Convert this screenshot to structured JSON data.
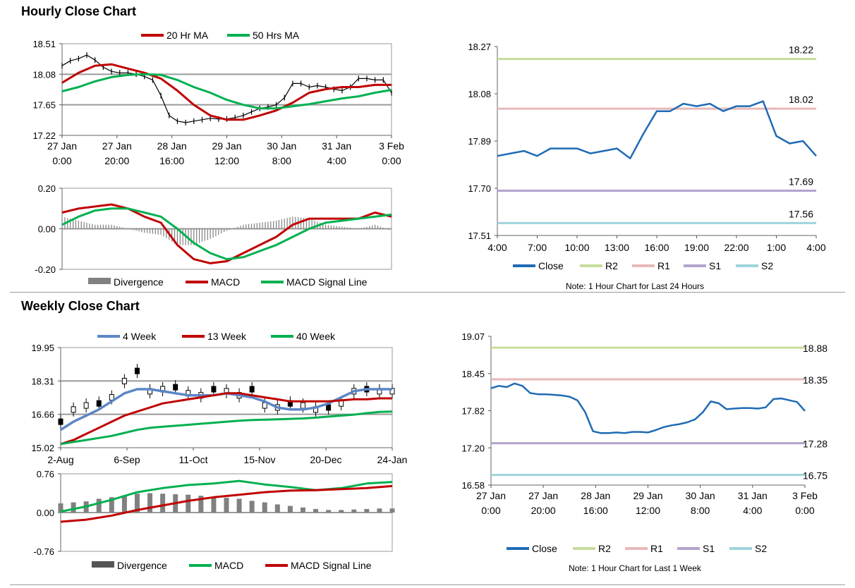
{
  "sections": {
    "hourly_title": "Hourly Close Chart",
    "weekly_title": "Weekly Close Chart"
  },
  "colors": {
    "ma20": "#c00000",
    "ma50": "#00b050",
    "price": "#000000",
    "close": "#1f6bb5",
    "r2": "#c5dd9b",
    "r1": "#e8b8b8",
    "s1": "#b3a3cd",
    "s2": "#9fd3dc",
    "w4": "#5b86c5",
    "w13": "#c00000",
    "w40": "#00b050",
    "divergence": "#808080"
  },
  "chart_data": [
    {
      "id": "hourly_price",
      "type": "line",
      "title": "Hourly Close Chart",
      "ylim": [
        17.22,
        18.51
      ],
      "y_ticks": [
        "18.51",
        "18.08",
        "17.65",
        "17.22"
      ],
      "x_ticks": [
        [
          "27 Jan",
          "0:00"
        ],
        [
          "27 Jan",
          "20:00"
        ],
        [
          "28 Jan",
          "16:00"
        ],
        [
          "29 Jan",
          "12:00"
        ],
        [
          "30 Jan",
          "8:00"
        ],
        [
          "31 Jan",
          "4:00"
        ],
        [
          "3 Feb",
          "0:00"
        ]
      ],
      "x_range": [
        0,
        120
      ],
      "legend": [
        "20 Hr MA",
        "50 Hrs MA"
      ],
      "series": [
        {
          "name": "Price",
          "x": [
            0,
            3,
            6,
            9,
            12,
            15,
            18,
            21,
            24,
            27,
            30,
            33,
            36,
            39,
            42,
            45,
            48,
            51,
            54,
            57,
            60,
            63,
            66,
            69,
            72,
            75,
            78,
            81,
            84,
            87,
            90,
            93,
            96,
            99,
            102,
            105,
            108,
            111,
            114,
            117,
            120
          ],
          "values": [
            18.2,
            18.27,
            18.3,
            18.35,
            18.28,
            18.18,
            18.12,
            18.1,
            18.1,
            18.08,
            18.05,
            18.0,
            17.78,
            17.5,
            17.42,
            17.4,
            17.42,
            17.44,
            17.46,
            17.45,
            17.45,
            17.47,
            17.5,
            17.55,
            17.6,
            17.62,
            17.65,
            17.75,
            17.95,
            17.95,
            17.9,
            17.92,
            17.9,
            17.87,
            17.85,
            17.9,
            18.02,
            18.02,
            18.0,
            18.0,
            17.82
          ]
        },
        {
          "name": "20 Hr MA",
          "x": [
            0,
            6,
            12,
            18,
            24,
            30,
            36,
            42,
            48,
            54,
            60,
            66,
            72,
            78,
            84,
            90,
            96,
            102,
            108,
            114,
            120
          ],
          "values": [
            17.96,
            18.1,
            18.2,
            18.22,
            18.16,
            18.1,
            18.02,
            17.85,
            17.65,
            17.5,
            17.44,
            17.44,
            17.5,
            17.57,
            17.68,
            17.82,
            17.87,
            17.9,
            17.9,
            17.93,
            17.93
          ]
        },
        {
          "name": "50 Hrs MA",
          "x": [
            0,
            6,
            12,
            18,
            24,
            30,
            36,
            42,
            48,
            54,
            60,
            66,
            72,
            78,
            84,
            90,
            96,
            102,
            108,
            114,
            120
          ],
          "values": [
            17.84,
            17.9,
            17.98,
            18.04,
            18.07,
            18.08,
            18.07,
            18.0,
            17.9,
            17.82,
            17.72,
            17.65,
            17.6,
            17.6,
            17.63,
            17.66,
            17.7,
            17.74,
            17.77,
            17.82,
            17.86
          ]
        }
      ]
    },
    {
      "id": "hourly_macd",
      "type": "line",
      "ylim": [
        -0.2,
        0.2
      ],
      "y_ticks": [
        "0.20",
        "0.00",
        "-0.20"
      ],
      "x_range": [
        0,
        120
      ],
      "legend": [
        "Divergence",
        "MACD",
        "MACD Signal Line"
      ],
      "series": [
        {
          "name": "MACD",
          "x": [
            0,
            6,
            12,
            18,
            24,
            30,
            36,
            42,
            48,
            54,
            60,
            66,
            72,
            78,
            84,
            90,
            96,
            102,
            108,
            114,
            120
          ],
          "values": [
            0.08,
            0.1,
            0.11,
            0.12,
            0.1,
            0.06,
            0.03,
            -0.08,
            -0.15,
            -0.17,
            -0.16,
            -0.12,
            -0.08,
            -0.04,
            0.02,
            0.05,
            0.05,
            0.05,
            0.05,
            0.08,
            0.06
          ]
        },
        {
          "name": "MACD Signal Line",
          "x": [
            0,
            6,
            12,
            18,
            24,
            30,
            36,
            42,
            48,
            54,
            60,
            66,
            72,
            78,
            84,
            90,
            96,
            102,
            108,
            114,
            120
          ],
          "values": [
            0.02,
            0.06,
            0.09,
            0.1,
            0.1,
            0.08,
            0.06,
            0.0,
            -0.07,
            -0.12,
            -0.15,
            -0.14,
            -0.11,
            -0.08,
            -0.04,
            0.0,
            0.03,
            0.04,
            0.05,
            0.06,
            0.07
          ]
        },
        {
          "name": "Divergence",
          "x": [
            0,
            6,
            12,
            18,
            24,
            30,
            36,
            42,
            48,
            54,
            60,
            66,
            72,
            78,
            84,
            90,
            96,
            102,
            108,
            114,
            120
          ],
          "values": [
            0.06,
            0.04,
            0.02,
            0.02,
            0.0,
            -0.02,
            -0.03,
            -0.08,
            -0.08,
            -0.05,
            -0.01,
            0.02,
            0.03,
            0.04,
            0.06,
            0.05,
            0.02,
            0.01,
            0.0,
            0.02,
            -0.01
          ]
        }
      ]
    },
    {
      "id": "hourly_24h",
      "type": "line",
      "ylim": [
        17.51,
        18.27
      ],
      "y_ticks": [
        "18.27",
        "18.08",
        "17.89",
        "17.70",
        "17.51"
      ],
      "x_ticks": [
        "4:00",
        "7:00",
        "10:00",
        "13:00",
        "16:00",
        "19:00",
        "22:00",
        "1:00",
        "4:00"
      ],
      "x_range": [
        0,
        24
      ],
      "legend": [
        "Close",
        "R2",
        "R1",
        "S1",
        "S2"
      ],
      "note": "Note: 1 Hour Chart for Last 24 Hours",
      "levels": [
        {
          "name": "R2",
          "value": 18.22,
          "label": "18.22"
        },
        {
          "name": "R1",
          "value": 18.02,
          "label": "18.02"
        },
        {
          "name": "S1",
          "value": 17.69,
          "label": "17.69"
        },
        {
          "name": "S2",
          "value": 17.56,
          "label": "17.56"
        }
      ],
      "series": [
        {
          "name": "Close",
          "x": [
            0,
            1,
            2,
            3,
            4,
            5,
            6,
            7,
            8,
            9,
            10,
            11,
            12,
            13,
            14,
            15,
            16,
            17,
            18,
            19,
            20,
            21,
            22,
            23,
            24
          ],
          "values": [
            17.83,
            17.84,
            17.85,
            17.83,
            17.86,
            17.86,
            17.86,
            17.84,
            17.85,
            17.86,
            17.82,
            17.92,
            18.01,
            18.01,
            18.04,
            18.03,
            18.04,
            18.01,
            18.03,
            18.03,
            18.05,
            17.91,
            17.88,
            17.89,
            17.83
          ]
        }
      ]
    },
    {
      "id": "weekly_price",
      "type": "line",
      "title": "Weekly Close Chart",
      "ylim": [
        15.02,
        19.95
      ],
      "y_ticks": [
        "19.95",
        "18.31",
        "16.66",
        "15.02"
      ],
      "x_ticks": [
        "2-Aug",
        "6-Sep",
        "11-Oct",
        "15-Nov",
        "20-Dec",
        "24-Jan"
      ],
      "x_range": [
        0,
        26
      ],
      "legend": [
        "4 Week",
        "13 Week",
        "40 Week"
      ],
      "series": [
        {
          "name": "Price",
          "x": [
            0,
            1,
            2,
            3,
            4,
            5,
            6,
            7,
            8,
            9,
            10,
            11,
            12,
            13,
            14,
            15,
            16,
            17,
            18,
            19,
            20,
            21,
            22,
            23,
            24,
            25,
            26
          ],
          "values": [
            16.3,
            16.9,
            17.1,
            17.2,
            17.5,
            18.3,
            18.8,
            17.8,
            17.9,
            18.0,
            17.7,
            17.6,
            17.9,
            17.8,
            17.6,
            17.9,
            17.1,
            17.0,
            17.2,
            17.1,
            16.9,
            17.0,
            17.2,
            17.8,
            17.9,
            17.8,
            17.8
          ]
        },
        {
          "name": "4 Week",
          "x": [
            0,
            1,
            2,
            3,
            4,
            5,
            6,
            7,
            8,
            9,
            10,
            11,
            12,
            13,
            14,
            15,
            16,
            17,
            18,
            19,
            20,
            21,
            22,
            23,
            24,
            25,
            26
          ],
          "values": [
            15.9,
            16.3,
            16.6,
            16.9,
            17.3,
            17.7,
            17.9,
            17.9,
            17.8,
            17.7,
            17.6,
            17.6,
            17.6,
            17.7,
            17.6,
            17.5,
            17.3,
            17.0,
            16.9,
            16.9,
            17.0,
            17.2,
            17.5,
            17.8,
            17.9,
            17.9,
            17.9
          ]
        },
        {
          "name": "13 Week",
          "x": [
            0,
            1,
            2,
            3,
            4,
            5,
            6,
            7,
            8,
            9,
            10,
            11,
            12,
            13,
            14,
            15,
            16,
            17,
            18,
            19,
            20,
            21,
            22,
            23,
            24,
            25,
            26
          ],
          "values": [
            15.2,
            15.4,
            15.7,
            16.0,
            16.3,
            16.6,
            16.8,
            17.0,
            17.2,
            17.3,
            17.4,
            17.5,
            17.6,
            17.7,
            17.7,
            17.6,
            17.5,
            17.4,
            17.3,
            17.3,
            17.3,
            17.3,
            17.35,
            17.4,
            17.4,
            17.45,
            17.45
          ]
        },
        {
          "name": "40 Week",
          "x": [
            0,
            1,
            2,
            3,
            4,
            5,
            6,
            7,
            8,
            9,
            10,
            11,
            12,
            13,
            14,
            15,
            16,
            17,
            18,
            19,
            20,
            21,
            22,
            23,
            24,
            25,
            26
          ],
          "values": [
            15.2,
            15.3,
            15.4,
            15.5,
            15.6,
            15.75,
            15.9,
            16.0,
            16.05,
            16.1,
            16.15,
            16.2,
            16.25,
            16.3,
            16.35,
            16.38,
            16.4,
            16.42,
            16.44,
            16.46,
            16.5,
            16.55,
            16.6,
            16.65,
            16.72,
            16.78,
            16.8
          ]
        }
      ]
    },
    {
      "id": "weekly_macd",
      "type": "bar",
      "ylim": [
        -0.76,
        0.76
      ],
      "y_ticks": [
        "0.76",
        "0.00",
        "-0.76"
      ],
      "x_range": [
        0,
        26
      ],
      "legend": [
        "Divergence",
        "MACD",
        "MACD Signal Line"
      ],
      "series": [
        {
          "name": "Divergence",
          "x": [
            0,
            1,
            2,
            3,
            4,
            5,
            6,
            7,
            8,
            9,
            10,
            11,
            12,
            13,
            14,
            15,
            16,
            17,
            18,
            19,
            20,
            21,
            22,
            23,
            24,
            25,
            26
          ],
          "values": [
            0.18,
            0.2,
            0.22,
            0.27,
            0.3,
            0.33,
            0.37,
            0.38,
            0.37,
            0.36,
            0.35,
            0.33,
            0.31,
            0.29,
            0.27,
            0.23,
            0.2,
            0.16,
            0.13,
            0.1,
            0.07,
            0.05,
            0.05,
            0.06,
            0.07,
            0.08,
            0.08
          ]
        },
        {
          "name": "MACD",
          "x": [
            0,
            2,
            4,
            6,
            8,
            10,
            12,
            14,
            16,
            18,
            20,
            22,
            24,
            26
          ],
          "values": [
            0.02,
            0.12,
            0.25,
            0.4,
            0.48,
            0.54,
            0.57,
            0.62,
            0.55,
            0.5,
            0.44,
            0.48,
            0.57,
            0.6
          ]
        },
        {
          "name": "MACD Signal Line",
          "x": [
            0,
            2,
            4,
            6,
            8,
            10,
            12,
            14,
            16,
            18,
            20,
            22,
            24,
            26
          ],
          "values": [
            -0.18,
            -0.14,
            -0.06,
            0.05,
            0.14,
            0.23,
            0.3,
            0.35,
            0.4,
            0.43,
            0.44,
            0.46,
            0.48,
            0.52
          ]
        }
      ]
    },
    {
      "id": "weekly_1w",
      "type": "line",
      "ylim": [
        16.58,
        19.07
      ],
      "y_ticks": [
        "19.07",
        "18.45",
        "17.82",
        "17.20",
        "16.58"
      ],
      "x_ticks": [
        [
          "27 Jan",
          "0:00"
        ],
        [
          "27 Jan",
          "20:00"
        ],
        [
          "28 Jan",
          "16:00"
        ],
        [
          "29 Jan",
          "12:00"
        ],
        [
          "30 Jan",
          "8:00"
        ],
        [
          "31 Jan",
          "4:00"
        ],
        [
          "3 Feb",
          "0:00"
        ]
      ],
      "x_range": [
        0,
        120
      ],
      "legend": [
        "Close",
        "R2",
        "R1",
        "S1",
        "S2"
      ],
      "note": "Note: 1 Hour Chart for Last 1 Week",
      "levels": [
        {
          "name": "R2",
          "value": 18.88,
          "label": "18.88"
        },
        {
          "name": "R1",
          "value": 18.35,
          "label": "18.35"
        },
        {
          "name": "S1",
          "value": 17.28,
          "label": "17.28"
        },
        {
          "name": "S2",
          "value": 16.75,
          "label": "16.75"
        }
      ],
      "series": [
        {
          "name": "Close",
          "x": [
            0,
            3,
            6,
            9,
            12,
            15,
            18,
            21,
            24,
            27,
            30,
            33,
            36,
            39,
            42,
            45,
            48,
            51,
            54,
            57,
            60,
            63,
            66,
            69,
            72,
            75,
            78,
            81,
            84,
            87,
            90,
            93,
            96,
            99,
            102,
            105,
            108,
            111,
            114,
            117,
            120
          ],
          "values": [
            18.2,
            18.24,
            18.22,
            18.28,
            18.24,
            18.12,
            18.1,
            18.1,
            18.09,
            18.08,
            18.06,
            18.0,
            17.8,
            17.48,
            17.45,
            17.45,
            17.46,
            17.45,
            17.47,
            17.47,
            17.46,
            17.5,
            17.55,
            17.58,
            17.6,
            17.63,
            17.68,
            17.8,
            17.98,
            17.95,
            17.85,
            17.86,
            17.87,
            17.87,
            17.86,
            17.88,
            18.02,
            18.03,
            18.0,
            17.97,
            17.82
          ]
        }
      ]
    }
  ]
}
